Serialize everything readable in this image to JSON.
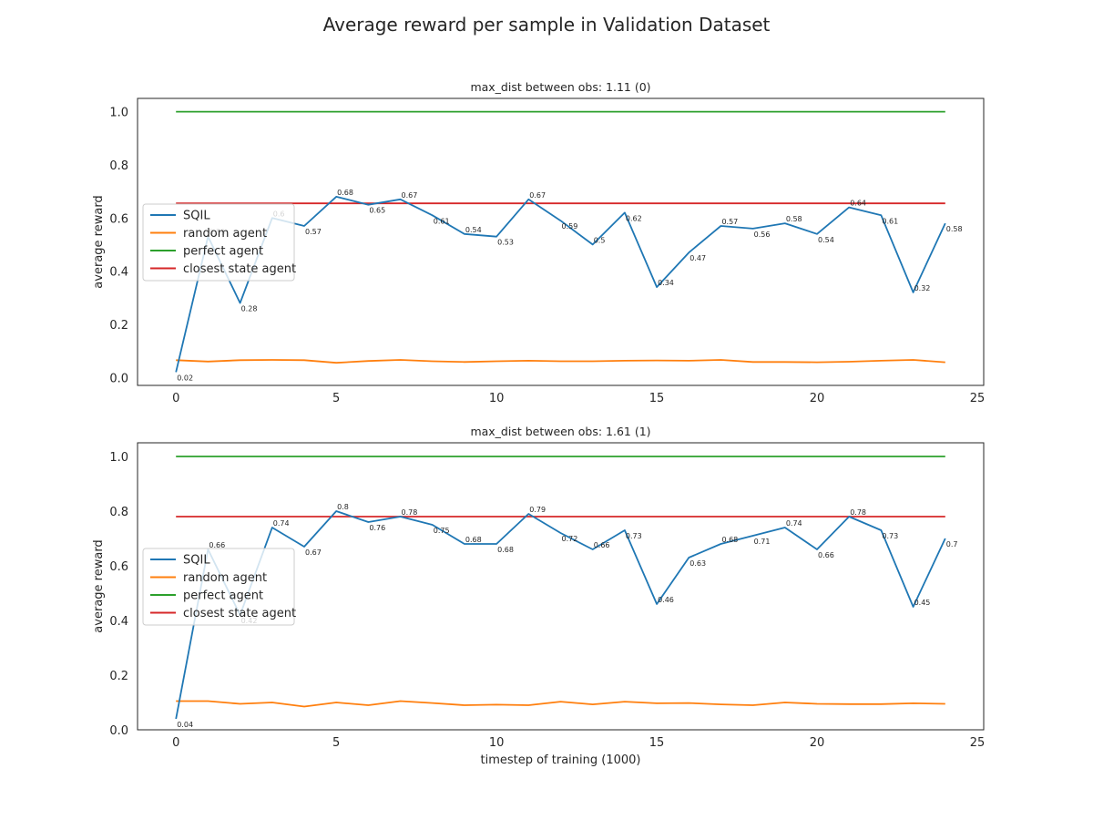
{
  "figure": {
    "title": "Average reward per sample in Validation Dataset"
  },
  "chart_data": [
    {
      "type": "line",
      "title": "max_dist between obs: 1.11 (0)",
      "xlabel": "",
      "ylabel": "average reward",
      "xlim": [
        -1.2,
        25.2
      ],
      "ylim": [
        -0.03,
        1.05
      ],
      "xticks": [
        0,
        5,
        10,
        15,
        20,
        25
      ],
      "yticks": [
        0.0,
        0.2,
        0.4,
        0.6,
        0.8,
        1.0
      ],
      "legend": "center-left",
      "grid": false,
      "x": [
        0,
        1,
        2,
        3,
        4,
        5,
        6,
        7,
        8,
        9,
        10,
        11,
        12,
        13,
        14,
        15,
        16,
        17,
        18,
        19,
        20,
        21,
        22,
        23,
        24
      ],
      "series": [
        {
          "name": "SQIL",
          "color": "#1f77b4",
          "values": [
            0.02,
            0.53,
            0.28,
            0.6,
            0.57,
            0.68,
            0.65,
            0.67,
            0.61,
            0.54,
            0.53,
            0.67,
            0.59,
            0.5,
            0.62,
            0.34,
            0.47,
            0.57,
            0.56,
            0.58,
            0.54,
            0.64,
            0.61,
            0.32,
            0.58
          ],
          "labels": [
            "0.02",
            "0.53",
            "0.28",
            "0.6",
            "0.57",
            "0.68",
            "0.65",
            "0.67",
            "0.61",
            "0.54",
            "0.53",
            "0.67",
            "0.59",
            "0.5",
            "0.62",
            "0.34",
            "0.47",
            "0.57",
            "0.56",
            "0.58",
            "0.54",
            "0.64",
            "0.61",
            "0.32",
            "0.58"
          ]
        },
        {
          "name": "random agent",
          "color": "#ff7f0e",
          "values": [
            0.065,
            0.06,
            0.065,
            0.066,
            0.065,
            0.055,
            0.062,
            0.066,
            0.061,
            0.058,
            0.061,
            0.063,
            0.061,
            0.061,
            0.063,
            0.064,
            0.063,
            0.066,
            0.058,
            0.058,
            0.057,
            0.059,
            0.063,
            0.066,
            0.057
          ]
        },
        {
          "name": "perfect agent",
          "color": "#2ca02c",
          "values": [
            1.0,
            1.0,
            1.0,
            1.0,
            1.0,
            1.0,
            1.0,
            1.0,
            1.0,
            1.0,
            1.0,
            1.0,
            1.0,
            1.0,
            1.0,
            1.0,
            1.0,
            1.0,
            1.0,
            1.0,
            1.0,
            1.0,
            1.0,
            1.0,
            1.0
          ]
        },
        {
          "name": "closest state agent",
          "color": "#d62728",
          "values": [
            0.655,
            0.655,
            0.655,
            0.655,
            0.655,
            0.655,
            0.655,
            0.655,
            0.655,
            0.655,
            0.655,
            0.655,
            0.655,
            0.655,
            0.655,
            0.655,
            0.655,
            0.655,
            0.655,
            0.655,
            0.655,
            0.655,
            0.655,
            0.655,
            0.655
          ]
        }
      ]
    },
    {
      "type": "line",
      "title": "max_dist between obs: 1.61 (1)",
      "xlabel": "timestep of training (1000)",
      "ylabel": "average reward",
      "xlim": [
        -1.2,
        25.2
      ],
      "ylim": [
        0.0,
        1.05
      ],
      "xticks": [
        0,
        5,
        10,
        15,
        20,
        25
      ],
      "yticks": [
        0.0,
        0.2,
        0.4,
        0.6,
        0.8,
        1.0
      ],
      "legend": "center-left",
      "grid": false,
      "x": [
        0,
        1,
        2,
        3,
        4,
        5,
        6,
        7,
        8,
        9,
        10,
        11,
        12,
        13,
        14,
        15,
        16,
        17,
        18,
        19,
        20,
        21,
        22,
        23,
        24
      ],
      "series": [
        {
          "name": "SQIL",
          "color": "#1f77b4",
          "values": [
            0.04,
            0.66,
            0.42,
            0.74,
            0.67,
            0.8,
            0.76,
            0.78,
            0.75,
            0.68,
            0.68,
            0.79,
            0.72,
            0.66,
            0.73,
            0.46,
            0.63,
            0.68,
            0.71,
            0.74,
            0.66,
            0.78,
            0.73,
            0.45,
            0.7
          ],
          "labels": [
            "0.04",
            "0.66",
            "0.42",
            "0.74",
            "0.67",
            "0.8",
            "0.76",
            "0.78",
            "0.75",
            "0.68",
            "0.68",
            "0.79",
            "0.72",
            "0.66",
            "0.73",
            "0.46",
            "0.63",
            "0.68",
            "0.71",
            "0.74",
            "0.66",
            "0.78",
            "0.73",
            "0.45",
            "0.7"
          ]
        },
        {
          "name": "random agent",
          "color": "#ff7f0e",
          "values": [
            0.105,
            0.105,
            0.095,
            0.1,
            0.085,
            0.1,
            0.09,
            0.105,
            0.098,
            0.09,
            0.092,
            0.09,
            0.103,
            0.093,
            0.103,
            0.097,
            0.098,
            0.093,
            0.09,
            0.1,
            0.095,
            0.094,
            0.094,
            0.097,
            0.095
          ]
        },
        {
          "name": "perfect agent",
          "color": "#2ca02c",
          "values": [
            1.0,
            1.0,
            1.0,
            1.0,
            1.0,
            1.0,
            1.0,
            1.0,
            1.0,
            1.0,
            1.0,
            1.0,
            1.0,
            1.0,
            1.0,
            1.0,
            1.0,
            1.0,
            1.0,
            1.0,
            1.0,
            1.0,
            1.0,
            1.0,
            1.0
          ]
        },
        {
          "name": "closest state agent",
          "color": "#d62728",
          "values": [
            0.78,
            0.78,
            0.78,
            0.78,
            0.78,
            0.78,
            0.78,
            0.78,
            0.78,
            0.78,
            0.78,
            0.78,
            0.78,
            0.78,
            0.78,
            0.78,
            0.78,
            0.78,
            0.78,
            0.78,
            0.78,
            0.78,
            0.78,
            0.78,
            0.78
          ]
        }
      ]
    }
  ]
}
